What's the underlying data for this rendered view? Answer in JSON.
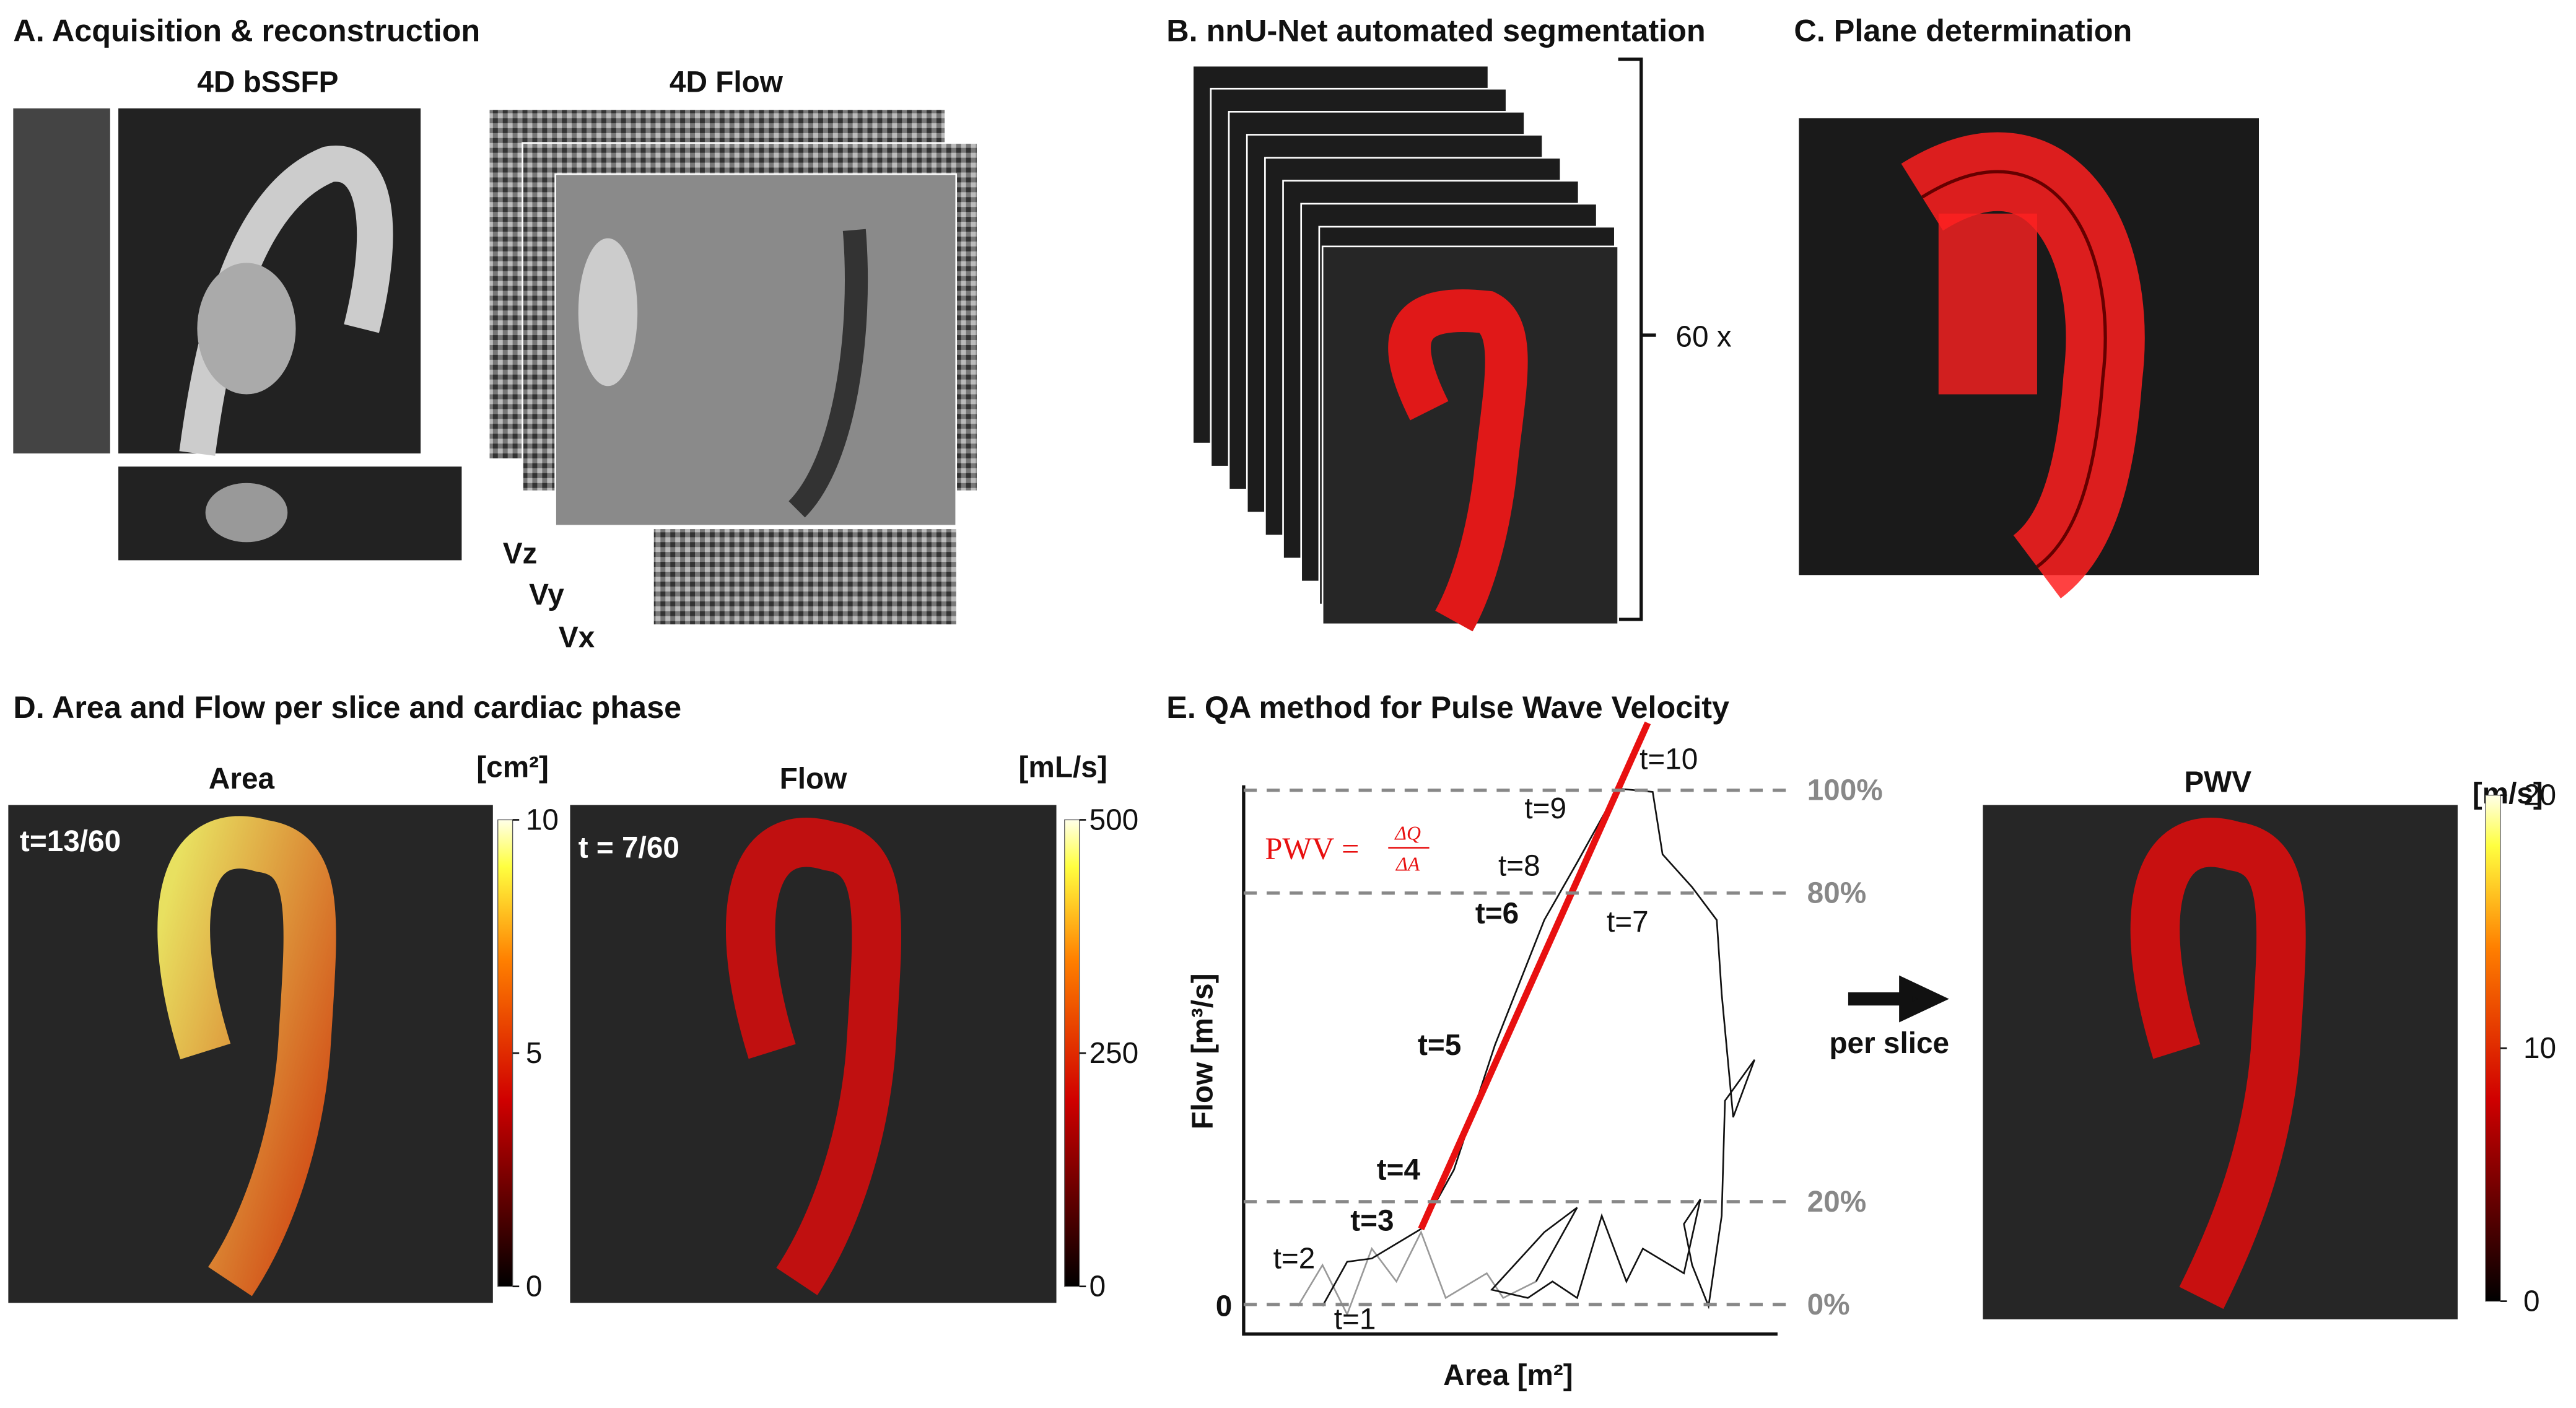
{
  "panels": {
    "a": {
      "title": "A. Acquisition & reconstruction",
      "bssfp": "4D bSSFP",
      "flow": "4D Flow",
      "components": [
        "Vz",
        "Vy",
        "Vx"
      ]
    },
    "b": {
      "title": "B. nnU-Net automated segmentation",
      "count": "60 x"
    },
    "c": {
      "title": "C. Plane determination"
    },
    "d": {
      "title": "D. Area and Flow per slice and cardiac phase",
      "area": {
        "label": "Area",
        "unit": "[cm²]",
        "time": "t=13/60",
        "lim": [
          0,
          10
        ],
        "ticks": [
          0,
          5,
          10
        ]
      },
      "flow": {
        "label": "Flow",
        "unit": "[mL/s]",
        "time": "t = 7/60",
        "lim": [
          0,
          500
        ],
        "ticks": [
          0,
          250,
          500
        ]
      }
    },
    "e": {
      "title": "E. QA method for Pulse Wave Velocity",
      "formula": {
        "lhs": "PWV =",
        "numerator": "ΔQ",
        "denominator": "ΔA"
      },
      "x_label": "Area [m²]",
      "y_label": "Flow [m³/s]",
      "y_zero": "0",
      "lim": [
        0,
        100
      ],
      "levels": [
        {
          "value": 0,
          "label": "0%"
        },
        {
          "value": 20,
          "label": "20%"
        },
        {
          "value": 80,
          "label": "80%"
        },
        {
          "value": 100,
          "label": "100%"
        }
      ],
      "time_labels": [
        "t=1",
        "t=2",
        "t=3",
        "t=4",
        "t=5",
        "t=6",
        "t=7",
        "t=8",
        "t=9",
        "t=10"
      ],
      "arrow": "per slice",
      "pwv": {
        "label": "PWV",
        "unit": "[m/s]",
        "lim": [
          0,
          20
        ],
        "ticks": [
          0,
          10,
          20
        ]
      }
    }
  }
}
